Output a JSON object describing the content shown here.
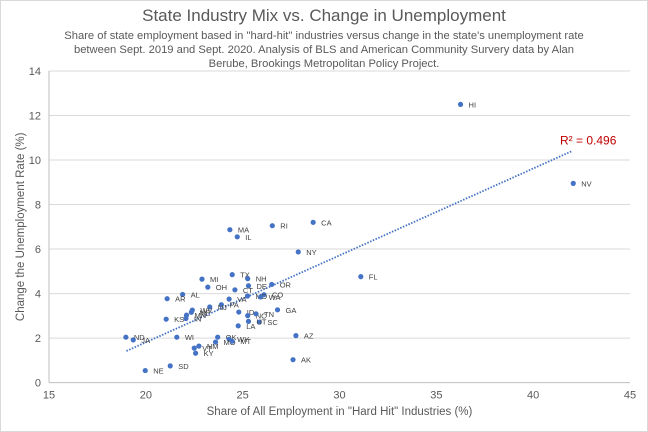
{
  "chart_data": {
    "type": "scatter",
    "title": "State Industry Mix vs. Change in Unemployment",
    "subtitle": "Share of state employment based in \"hard-hit\" industries versus change in the state's unemployment rate between Sept. 2019 and Sept. 2020.  Analysis of BLS and American Community Survery data by Alan Berube, Brookings Metropolitan Policy Project.",
    "xlabel": "Share of All Employment in \"Hard Hit\" Industries (%)",
    "ylabel": "Change the Unemployment Rate (%)",
    "xlim": [
      15,
      45
    ],
    "ylim": [
      0,
      14
    ],
    "xticks": [
      15,
      20,
      25,
      30,
      35,
      40,
      45
    ],
    "yticks": [
      0,
      2,
      4,
      6,
      8,
      10,
      12,
      14
    ],
    "grid": "horizontal",
    "marker_color": "#4472c4",
    "trendline": {
      "type": "linear",
      "color": "#4472c4",
      "style": "dotted",
      "x": [
        19.0,
        42.0
      ],
      "y": [
        1.42,
        10.4
      ],
      "r_squared_label": "R² = 0.496",
      "label_color": "#c00000"
    },
    "points": [
      {
        "label": "HI",
        "x": 36.25,
        "y": 12.5
      },
      {
        "label": "NV",
        "x": 42.07,
        "y": 8.95
      },
      {
        "label": "CA",
        "x": 28.64,
        "y": 7.2
      },
      {
        "label": "RI",
        "x": 26.53,
        "y": 7.05
      },
      {
        "label": "MA",
        "x": 24.34,
        "y": 6.87
      },
      {
        "label": "IL",
        "x": 24.72,
        "y": 6.55
      },
      {
        "label": "NY",
        "x": 27.87,
        "y": 5.87
      },
      {
        "label": "FL",
        "x": 31.1,
        "y": 4.76
      },
      {
        "label": "TX",
        "x": 24.46,
        "y": 4.85
      },
      {
        "label": "NH",
        "x": 25.26,
        "y": 4.67
      },
      {
        "label": "MI",
        "x": 22.9,
        "y": 4.65
      },
      {
        "label": "OH",
        "x": 23.2,
        "y": 4.29
      },
      {
        "label": "OR",
        "x": 26.5,
        "y": 4.41
      },
      {
        "label": "DE",
        "x": 25.3,
        "y": 4.35
      },
      {
        "label": "CT",
        "x": 24.6,
        "y": 4.17
      },
      {
        "label": "CO",
        "x": 26.1,
        "y": 3.95
      },
      {
        "label": "MD",
        "x": 25.25,
        "y": 3.89
      },
      {
        "label": "WA",
        "x": 25.93,
        "y": 3.85
      },
      {
        "label": "VA",
        "x": 24.3,
        "y": 3.75
      },
      {
        "label": "PA",
        "x": 23.9,
        "y": 3.5
      },
      {
        "label": "NJ",
        "x": 23.3,
        "y": 3.4
      },
      {
        "label": "ME",
        "x": 22.35,
        "y": 3.16
      },
      {
        "label": "WV",
        "x": 22.4,
        "y": 3.26
      },
      {
        "label": "AL",
        "x": 21.9,
        "y": 3.96
      },
      {
        "label": "AR",
        "x": 21.1,
        "y": 3.77
      },
      {
        "label": "IN",
        "x": 22.07,
        "y": 2.88
      },
      {
        "label": "MN",
        "x": 22.1,
        "y": 3.03
      },
      {
        "label": "KS",
        "x": 21.05,
        "y": 2.85
      },
      {
        "label": "ID",
        "x": 24.8,
        "y": 3.17
      },
      {
        "label": "NC",
        "x": 25.26,
        "y": 3.01
      },
      {
        "label": "TN",
        "x": 25.69,
        "y": 3.09
      },
      {
        "label": "GA",
        "x": 26.8,
        "y": 3.27
      },
      {
        "label": "SC",
        "x": 25.86,
        "y": 2.72
      },
      {
        "label": "UT",
        "x": 25.3,
        "y": 2.75
      },
      {
        "label": "LA",
        "x": 24.77,
        "y": 2.55
      },
      {
        "label": "WI",
        "x": 21.6,
        "y": 2.04
      },
      {
        "label": "OK",
        "x": 23.71,
        "y": 2.04
      },
      {
        "label": "WY",
        "x": 24.3,
        "y": 1.95
      },
      {
        "label": "MO",
        "x": 23.6,
        "y": 1.82
      },
      {
        "label": "MT",
        "x": 24.46,
        "y": 1.86
      },
      {
        "label": "NM",
        "x": 22.74,
        "y": 1.64
      },
      {
        "label": "VT",
        "x": 22.5,
        "y": 1.55
      },
      {
        "label": "KY",
        "x": 22.57,
        "y": 1.32
      },
      {
        "label": "AZ",
        "x": 27.75,
        "y": 2.11
      },
      {
        "label": "AK",
        "x": 27.6,
        "y": 1.03
      },
      {
        "label": "ND",
        "x": 18.97,
        "y": 2.04
      },
      {
        "label": "JA",
        "x": 19.35,
        "y": 1.92
      },
      {
        "label": "NE",
        "x": 19.97,
        "y": 0.54
      },
      {
        "label": "SD",
        "x": 21.26,
        "y": 0.75
      }
    ]
  }
}
